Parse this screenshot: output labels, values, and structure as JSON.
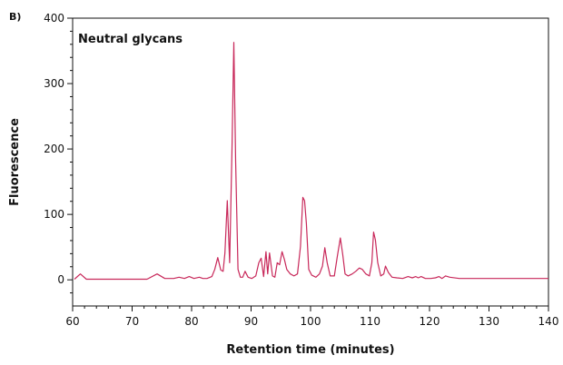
{
  "panel_label": "B)",
  "chart_data": {
    "type": "line",
    "title": "Neutral glycans",
    "xlabel": "Retention time (minutes)",
    "ylabel": "Fluorescence",
    "xlim": [
      60,
      140
    ],
    "ylim": [
      -40,
      400
    ],
    "x_ticks": [
      60,
      70,
      80,
      90,
      100,
      110,
      120,
      130,
      140
    ],
    "y_ticks": [
      0,
      100,
      200,
      300,
      400
    ],
    "x_minor_step": 2,
    "y_minor_step": 20,
    "grid": false,
    "line_color": "#c8285a",
    "baseline": 1,
    "series": [
      {
        "x": [
          60.3,
          61.3,
          62.3,
          68.0,
          72.5,
          74.2,
          75.5,
          77.0,
          77.9,
          78.8,
          79.6,
          80.4,
          81.3,
          81.9,
          82.6,
          83.4,
          83.9,
          84.4,
          84.9,
          85.3,
          85.6,
          86.0,
          86.4,
          86.8,
          87.1,
          87.4,
          87.8,
          88.2,
          88.6,
          89.0,
          89.5,
          90.1,
          90.8,
          91.3,
          91.7,
          92.1,
          92.5,
          92.8,
          93.1,
          93.6,
          94.0,
          94.4,
          94.8,
          95.2,
          95.6,
          96.0,
          96.6,
          97.2,
          97.8,
          98.3,
          98.7,
          99.0,
          99.3,
          99.7,
          100.2,
          100.9,
          101.5,
          102.0,
          102.4,
          102.8,
          103.3,
          104.0,
          104.5,
          105.0,
          105.4,
          105.8,
          106.3,
          107.0,
          107.6,
          108.2,
          108.7,
          109.3,
          109.9,
          110.3,
          110.6,
          110.9,
          111.3,
          111.8,
          112.3,
          112.6,
          113.1,
          113.7,
          114.5,
          115.5,
          116.4,
          117.1,
          117.7,
          118.1,
          118.6,
          119.3,
          120.2,
          121.0,
          121.6,
          122.1,
          122.7,
          123.4,
          125.0,
          130.0,
          135.0,
          140.0
        ],
        "y": [
          0,
          8,
          0,
          0,
          0,
          8,
          1,
          1,
          3,
          1,
          4,
          1,
          3,
          1,
          1,
          4,
          15,
          33,
          14,
          12,
          40,
          120,
          25,
          200,
          362,
          180,
          15,
          3,
          3,
          12,
          3,
          1,
          5,
          25,
          32,
          4,
          42,
          8,
          40,
          5,
          3,
          25,
          22,
          42,
          30,
          15,
          8,
          5,
          8,
          50,
          125,
          120,
          85,
          15,
          6,
          3,
          8,
          20,
          48,
          25,
          5,
          5,
          35,
          63,
          38,
          8,
          5,
          8,
          12,
          17,
          15,
          8,
          5,
          25,
          72,
          60,
          25,
          5,
          8,
          20,
          10,
          3,
          2,
          1,
          4,
          2,
          4,
          2,
          4,
          1,
          1,
          2,
          4,
          1,
          5,
          3,
          1,
          1,
          1,
          1
        ]
      }
    ]
  }
}
